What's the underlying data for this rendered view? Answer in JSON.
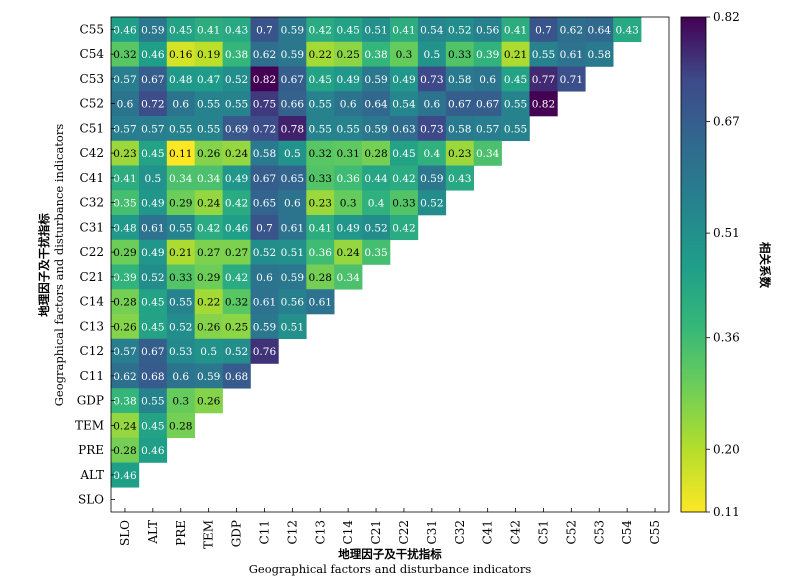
{
  "chart_data": {
    "type": "heatmap",
    "title": "",
    "xlabel_cn": "地理因子及干扰指标",
    "xlabel_en": "Geographical factors and disturbance indicators",
    "ylabel_cn": "地理因子及干扰指标",
    "ylabel_en": "Geographical factors and disturbance indicators",
    "colorbar_label": "相关系数",
    "colorbar_ticks": [
      "0.82",
      "0.67",
      "0.51",
      "0.36",
      "0.20",
      "0.11"
    ],
    "colorbar_tick_values": [
      0.82,
      0.67,
      0.51,
      0.36,
      0.2,
      0.11
    ],
    "vmin": 0.11,
    "vmax": 0.82,
    "colormap": "viridis_r",
    "x_categories": [
      "SLO",
      "ALT",
      "PRE",
      "TEM",
      "GDP",
      "C11",
      "C12",
      "C13",
      "C14",
      "C21",
      "C22",
      "C31",
      "C32",
      "C41",
      "C42",
      "C51",
      "C52",
      "C53",
      "C54",
      "C55"
    ],
    "y_categories": [
      "C55",
      "C54",
      "C53",
      "C52",
      "C51",
      "C42",
      "C41",
      "C32",
      "C31",
      "C22",
      "C21",
      "C14",
      "C13",
      "C12",
      "C11",
      "GDP",
      "TEM",
      "PRE",
      "ALT",
      "SLO"
    ],
    "values": [
      [
        0.46,
        0.59,
        0.45,
        0.41,
        0.43,
        0.7,
        0.59,
        0.42,
        0.45,
        0.51,
        0.41,
        0.54,
        0.52,
        0.56,
        0.41,
        0.7,
        0.62,
        0.64,
        0.43
      ],
      [
        0.32,
        0.46,
        0.16,
        0.19,
        0.38,
        0.62,
        0.59,
        0.22,
        0.25,
        0.38,
        0.3,
        0.5,
        0.33,
        0.39,
        0.21,
        0.55,
        0.61,
        0.58
      ],
      [
        0.57,
        0.67,
        0.48,
        0.47,
        0.52,
        0.82,
        0.67,
        0.45,
        0.49,
        0.59,
        0.49,
        0.73,
        0.58,
        0.6,
        0.45,
        0.77,
        0.71
      ],
      [
        0.6,
        0.72,
        0.6,
        0.55,
        0.55,
        0.75,
        0.66,
        0.55,
        0.6,
        0.64,
        0.54,
        0.6,
        0.67,
        0.67,
        0.55,
        0.82
      ],
      [
        0.57,
        0.57,
        0.55,
        0.55,
        0.69,
        0.72,
        0.78,
        0.55,
        0.55,
        0.59,
        0.63,
        0.73,
        0.58,
        0.57,
        0.55
      ],
      [
        0.23,
        0.45,
        0.11,
        0.26,
        0.24,
        0.58,
        0.5,
        0.32,
        0.31,
        0.28,
        0.45,
        0.4,
        0.23,
        0.34
      ],
      [
        0.41,
        0.5,
        0.34,
        0.34,
        0.49,
        0.67,
        0.65,
        0.33,
        0.36,
        0.44,
        0.42,
        0.59,
        0.43
      ],
      [
        0.35,
        0.49,
        0.29,
        0.24,
        0.42,
        0.65,
        0.6,
        0.23,
        0.3,
        0.4,
        0.33,
        0.52
      ],
      [
        0.48,
        0.61,
        0.55,
        0.42,
        0.46,
        0.7,
        0.61,
        0.41,
        0.49,
        0.52,
        0.42
      ],
      [
        0.29,
        0.49,
        0.21,
        0.27,
        0.27,
        0.52,
        0.51,
        0.36,
        0.24,
        0.35
      ],
      [
        0.39,
        0.52,
        0.33,
        0.29,
        0.42,
        0.6,
        0.59,
        0.28,
        0.34
      ],
      [
        0.28,
        0.45,
        0.55,
        0.22,
        0.32,
        0.61,
        0.56,
        0.61
      ],
      [
        0.26,
        0.45,
        0.52,
        0.26,
        0.25,
        0.59,
        0.51
      ],
      [
        0.57,
        0.67,
        0.53,
        0.5,
        0.52,
        0.76
      ],
      [
        0.62,
        0.68,
        0.6,
        0.59,
        0.68
      ],
      [
        0.38,
        0.55,
        0.3,
        0.26
      ],
      [
        0.24,
        0.45,
        0.28
      ],
      [
        0.28,
        0.46
      ],
      [
        0.46
      ],
      []
    ]
  }
}
